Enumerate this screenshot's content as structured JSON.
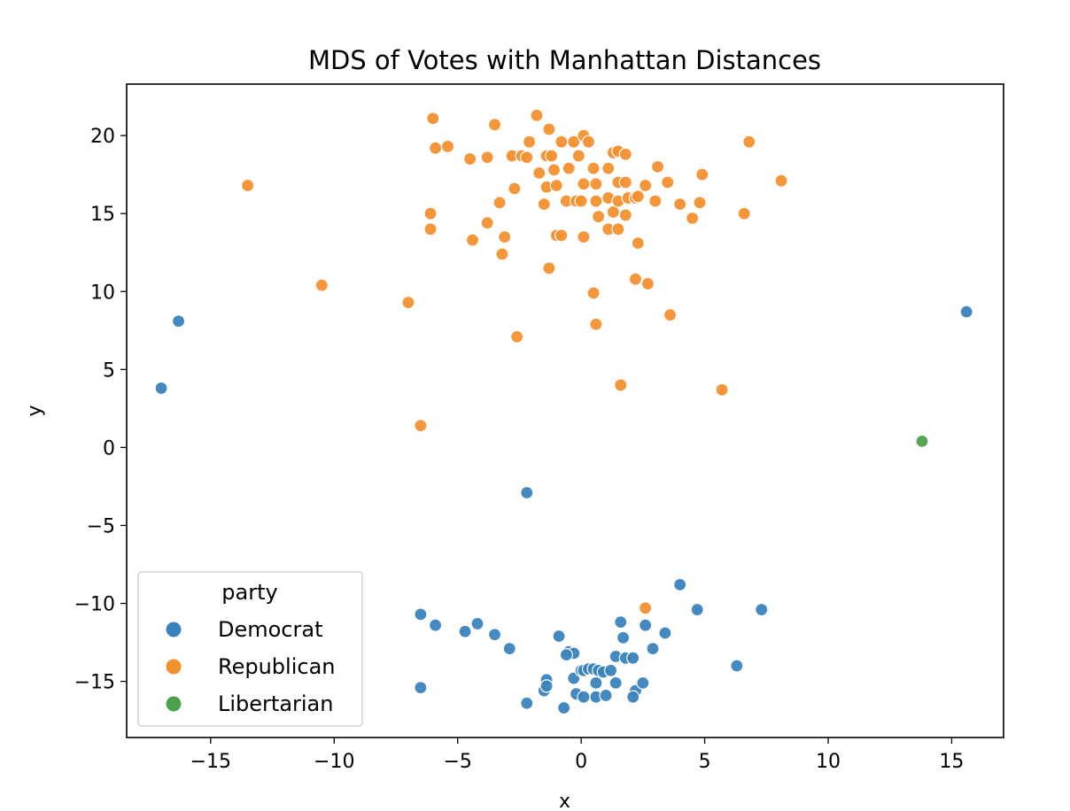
{
  "chart_data": {
    "type": "scatter",
    "title": "MDS of Votes with Manhattan Distances",
    "xlabel": "x",
    "ylabel": "y",
    "xlim": [
      -18.4,
      17.1
    ],
    "ylim": [
      -18.6,
      23.3
    ],
    "xticks": [
      -15,
      -10,
      -5,
      0,
      5,
      10,
      15
    ],
    "yticks": [
      -15,
      -10,
      -5,
      0,
      5,
      10,
      15,
      20
    ],
    "xtick_labels": [
      "−15",
      "−10",
      "−5",
      "0",
      "5",
      "10",
      "15"
    ],
    "ytick_labels": [
      "−15",
      "−10",
      "−5",
      "0",
      "5",
      "10",
      "15",
      "20"
    ],
    "grid": false,
    "legend": {
      "title": "party",
      "placement": "lower-left",
      "entries": [
        "Democrat",
        "Republican",
        "Libertarian"
      ]
    },
    "colors": {
      "Democrat": "#3a84bd",
      "Republican": "#f3902e",
      "Libertarian": "#4da04c"
    },
    "series": [
      {
        "name": "Democrat",
        "points": [
          [
            -16.3,
            8.1
          ],
          [
            -17.0,
            3.8
          ],
          [
            15.6,
            8.7
          ],
          [
            -2.2,
            -2.9
          ],
          [
            -6.5,
            -10.7
          ],
          [
            -5.9,
            -11.4
          ],
          [
            -4.7,
            -11.8
          ],
          [
            -4.2,
            -11.3
          ],
          [
            -3.5,
            -12.0
          ],
          [
            -2.9,
            -12.9
          ],
          [
            -6.5,
            -15.4
          ],
          [
            -2.2,
            -16.4
          ],
          [
            -1.5,
            -15.6
          ],
          [
            -1.4,
            -14.9
          ],
          [
            -1.4,
            -15.3
          ],
          [
            -0.9,
            -12.1
          ],
          [
            -0.5,
            -13.1
          ],
          [
            -0.3,
            -13.2
          ],
          [
            -0.6,
            -13.3
          ],
          [
            -0.3,
            -14.8
          ],
          [
            -0.2,
            -15.8
          ],
          [
            0.0,
            -14.3
          ],
          [
            0.1,
            -14.3
          ],
          [
            0.3,
            -14.2
          ],
          [
            0.5,
            -14.2
          ],
          [
            0.7,
            -14.3
          ],
          [
            0.9,
            -14.4
          ],
          [
            1.2,
            -14.3
          ],
          [
            0.6,
            -15.1
          ],
          [
            0.1,
            -16.0
          ],
          [
            0.6,
            -16.0
          ],
          [
            1.0,
            -15.9
          ],
          [
            1.4,
            -15.1
          ],
          [
            -0.7,
            -16.7
          ],
          [
            1.4,
            -13.4
          ],
          [
            1.6,
            -11.2
          ],
          [
            1.7,
            -12.2
          ],
          [
            1.8,
            -13.5
          ],
          [
            2.1,
            -13.5
          ],
          [
            2.2,
            -15.6
          ],
          [
            2.1,
            -16.0
          ],
          [
            2.5,
            -15.1
          ],
          [
            2.6,
            -11.4
          ],
          [
            2.9,
            -12.9
          ],
          [
            3.4,
            -11.9
          ],
          [
            4.0,
            -8.8
          ],
          [
            4.7,
            -10.4
          ],
          [
            6.3,
            -14.0
          ],
          [
            7.3,
            -10.4
          ]
        ]
      },
      {
        "name": "Republican",
        "points": [
          [
            -13.5,
            16.8
          ],
          [
            -10.5,
            10.4
          ],
          [
            -7.0,
            9.3
          ],
          [
            -6.5,
            1.4
          ],
          [
            -6.0,
            21.1
          ],
          [
            -5.9,
            19.2
          ],
          [
            -5.4,
            19.3
          ],
          [
            -6.1,
            15.0
          ],
          [
            -6.1,
            14.0
          ],
          [
            -4.5,
            18.5
          ],
          [
            -4.4,
            13.3
          ],
          [
            -3.8,
            18.6
          ],
          [
            -3.8,
            14.4
          ],
          [
            -3.5,
            20.7
          ],
          [
            -3.3,
            15.7
          ],
          [
            -3.1,
            13.5
          ],
          [
            -3.2,
            12.4
          ],
          [
            -2.8,
            18.7
          ],
          [
            -2.7,
            16.6
          ],
          [
            -2.6,
            7.1
          ],
          [
            -2.4,
            18.7
          ],
          [
            -2.2,
            18.6
          ],
          [
            -2.1,
            19.6
          ],
          [
            -1.8,
            21.3
          ],
          [
            -1.7,
            17.6
          ],
          [
            -1.4,
            18.7
          ],
          [
            -1.3,
            20.4
          ],
          [
            -1.4,
            16.7
          ],
          [
            -1.5,
            15.6
          ],
          [
            -1.3,
            11.5
          ],
          [
            -1.2,
            18.7
          ],
          [
            -1.1,
            17.8
          ],
          [
            -1.0,
            16.8
          ],
          [
            -1.0,
            13.6
          ],
          [
            -0.8,
            13.6
          ],
          [
            -0.8,
            19.6
          ],
          [
            -0.6,
            15.8
          ],
          [
            -0.5,
            17.9
          ],
          [
            -0.3,
            19.6
          ],
          [
            -0.2,
            15.8
          ],
          [
            -0.1,
            18.7
          ],
          [
            0.1,
            20.0
          ],
          [
            0.1,
            16.9
          ],
          [
            0.0,
            15.8
          ],
          [
            0.1,
            13.5
          ],
          [
            0.3,
            19.6
          ],
          [
            0.5,
            17.9
          ],
          [
            0.5,
            9.9
          ],
          [
            0.6,
            16.9
          ],
          [
            0.6,
            15.8
          ],
          [
            0.6,
            7.9
          ],
          [
            0.7,
            14.8
          ],
          [
            1.1,
            17.9
          ],
          [
            1.1,
            16.0
          ],
          [
            1.1,
            14.0
          ],
          [
            1.3,
            15.1
          ],
          [
            1.3,
            18.9
          ],
          [
            1.5,
            19.0
          ],
          [
            1.5,
            17.0
          ],
          [
            1.5,
            15.8
          ],
          [
            1.5,
            14.0
          ],
          [
            1.6,
            4.0
          ],
          [
            1.8,
            18.8
          ],
          [
            1.8,
            17.0
          ],
          [
            1.8,
            14.9
          ],
          [
            1.9,
            16.0
          ],
          [
            2.2,
            16.0
          ],
          [
            2.2,
            10.8
          ],
          [
            2.3,
            16.1
          ],
          [
            2.3,
            13.1
          ],
          [
            2.6,
            16.8
          ],
          [
            2.7,
            10.5
          ],
          [
            2.6,
            -10.3
          ],
          [
            3.0,
            15.8
          ],
          [
            3.1,
            18.0
          ],
          [
            3.5,
            17.0
          ],
          [
            3.6,
            8.5
          ],
          [
            4.0,
            15.6
          ],
          [
            4.5,
            14.7
          ],
          [
            4.8,
            15.7
          ],
          [
            4.9,
            17.5
          ],
          [
            5.7,
            3.7
          ],
          [
            6.6,
            15.0
          ],
          [
            6.8,
            19.6
          ],
          [
            8.1,
            17.1
          ]
        ]
      },
      {
        "name": "Libertarian",
        "points": [
          [
            13.8,
            0.4
          ]
        ]
      }
    ]
  }
}
